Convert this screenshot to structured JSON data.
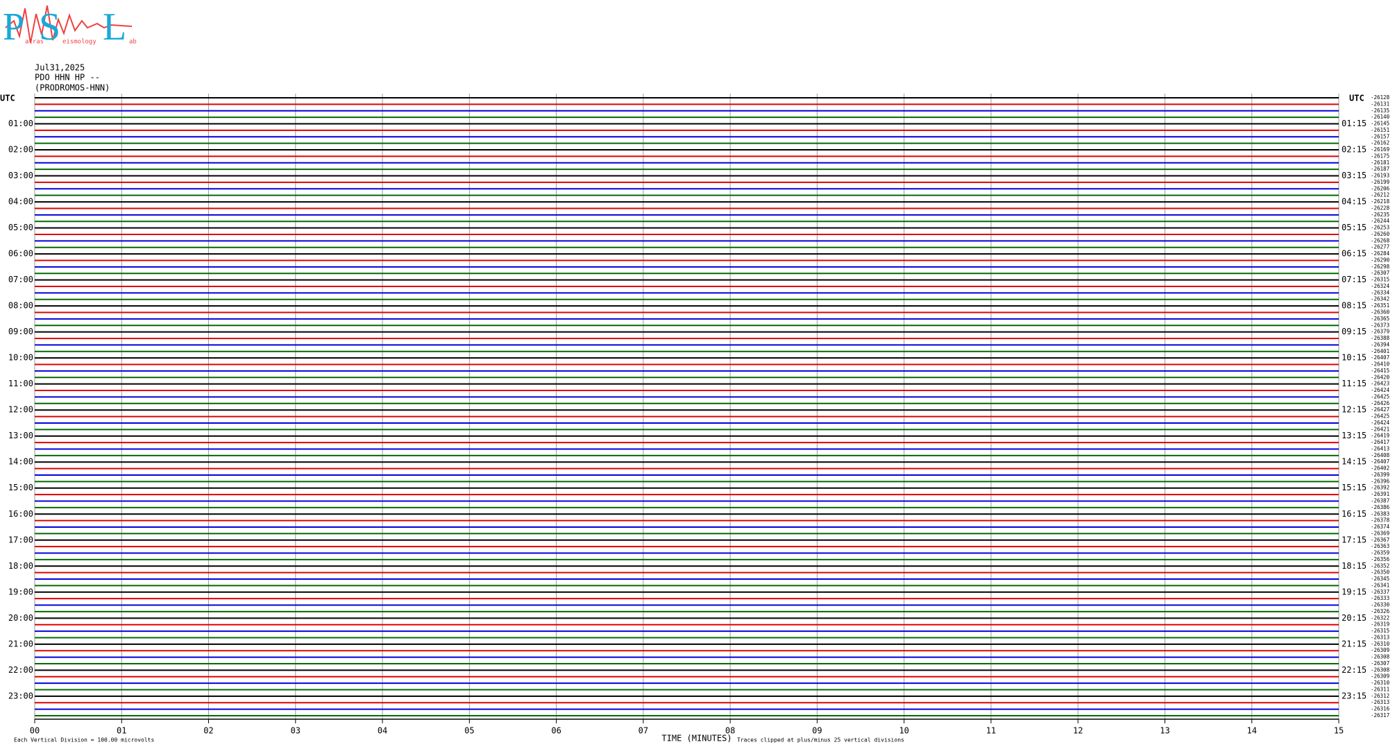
{
  "logo": {
    "letters": [
      "P",
      "S",
      "L"
    ],
    "words": [
      "atras",
      "eismology",
      "ab"
    ]
  },
  "chart_data": {
    "type": "helicorder",
    "header": [
      "Jul31,2025",
      "PDO HHN HP --",
      "(PRODROMOS-HNN)"
    ],
    "y_label": "UTC",
    "x_label": "TIME (MINUTES)",
    "notes": [
      "Each Vertical Division =  100.00 microvolts",
      "Traces clipped at plus/minus 25 vertical divisions"
    ],
    "xlim": [
      0,
      15
    ],
    "xticks": [
      {
        "value": 0,
        "label": "00"
      },
      {
        "value": 1,
        "label": "01"
      },
      {
        "value": 2,
        "label": "02"
      },
      {
        "value": 3,
        "label": "03"
      },
      {
        "value": 4,
        "label": "04"
      },
      {
        "value": 5,
        "label": "05"
      },
      {
        "value": 6,
        "label": "06"
      },
      {
        "value": 7,
        "label": "07"
      },
      {
        "value": 8,
        "label": "08"
      },
      {
        "value": 9,
        "label": "09"
      },
      {
        "value": 10,
        "label": "10"
      },
      {
        "value": 11,
        "label": "11"
      },
      {
        "value": 12,
        "label": "12"
      },
      {
        "value": 13,
        "label": "13"
      },
      {
        "value": 14,
        "label": "14"
      },
      {
        "value": 15,
        "label": "15"
      }
    ],
    "grid": true,
    "colors": [
      "#000000",
      "#e00000",
      "#0000dd",
      "#006a00"
    ],
    "categories": [
      null,
      null,
      null,
      null,
      "01:00",
      null,
      null,
      null,
      "02:00",
      null,
      null,
      null,
      "03:00",
      null,
      null,
      null,
      "04:00",
      null,
      null,
      null,
      "05:00",
      null,
      null,
      null,
      "06:00",
      null,
      null,
      null,
      "07:00",
      null,
      null,
      null,
      "08:00",
      null,
      null,
      null,
      "09:00",
      null,
      null,
      null,
      "10:00",
      null,
      null,
      null,
      "11:00",
      null,
      null,
      null,
      "12:00",
      null,
      null,
      null,
      "13:00",
      null,
      null,
      null,
      "14:00",
      null,
      null,
      null,
      "15:00",
      null,
      null,
      null,
      "16:00",
      null,
      null,
      null,
      "17:00",
      null,
      null,
      null,
      "18:00",
      null,
      null,
      null,
      "19:00",
      null,
      null,
      null,
      "20:00",
      null,
      null,
      null,
      "21:00",
      null,
      null,
      null,
      "22:00",
      null,
      null,
      null,
      "23:00",
      null,
      null,
      null
    ],
    "right_categories": [
      null,
      null,
      null,
      null,
      "01:15",
      null,
      null,
      null,
      "02:15",
      null,
      null,
      null,
      "03:15",
      null,
      null,
      null,
      "04:15",
      null,
      null,
      null,
      "05:15",
      null,
      null,
      null,
      "06:15",
      null,
      null,
      null,
      "07:15",
      null,
      null,
      null,
      "08:15",
      null,
      null,
      null,
      "09:15",
      null,
      null,
      null,
      "10:15",
      null,
      null,
      null,
      "11:15",
      null,
      null,
      null,
      "12:15",
      null,
      null,
      null,
      "13:15",
      null,
      null,
      null,
      "14:15",
      null,
      null,
      null,
      "15:15",
      null,
      null,
      null,
      "16:15",
      null,
      null,
      null,
      "17:15",
      null,
      null,
      null,
      "18:15",
      null,
      null,
      null,
      "19:15",
      null,
      null,
      null,
      "20:15",
      null,
      null,
      null,
      "21:15",
      null,
      null,
      null,
      "22:15",
      null,
      null,
      null,
      "23:15",
      null,
      null,
      null
    ],
    "values": [
      -26128,
      -26131,
      -26135,
      -26140,
      -26145,
      -26151,
      -26157,
      -26162,
      -26169,
      -26175,
      -26181,
      -26187,
      -26193,
      -26199,
      -26206,
      -26212,
      -26218,
      -26228,
      -26235,
      -26244,
      -26253,
      -26260,
      -26268,
      -26277,
      -26284,
      -26290,
      -26298,
      -26307,
      -26315,
      -26324,
      -26334,
      -26342,
      -26351,
      -26360,
      -26365,
      -26373,
      -26379,
      -26388,
      -26394,
      -26401,
      -26407,
      -26410,
      -26415,
      -26420,
      -26423,
      -26424,
      -26425,
      -26426,
      -26427,
      -26425,
      -26424,
      -26421,
      -26419,
      -26417,
      -26413,
      -26408,
      -26407,
      -26402,
      -26399,
      -26396,
      -26392,
      -26391,
      -26387,
      -26386,
      -26383,
      -26378,
      -26374,
      -26369,
      -26367,
      -26363,
      -26359,
      -26356,
      -26352,
      -26350,
      -26345,
      -26341,
      -26337,
      -26333,
      -26330,
      -26326,
      -26322,
      -26319,
      -26315,
      -26313,
      -26310,
      -26309,
      -26308,
      -26307,
      -26308,
      -26309,
      -26310,
      -26311,
      -26312,
      -26313,
      -26316,
      -26317
    ]
  }
}
